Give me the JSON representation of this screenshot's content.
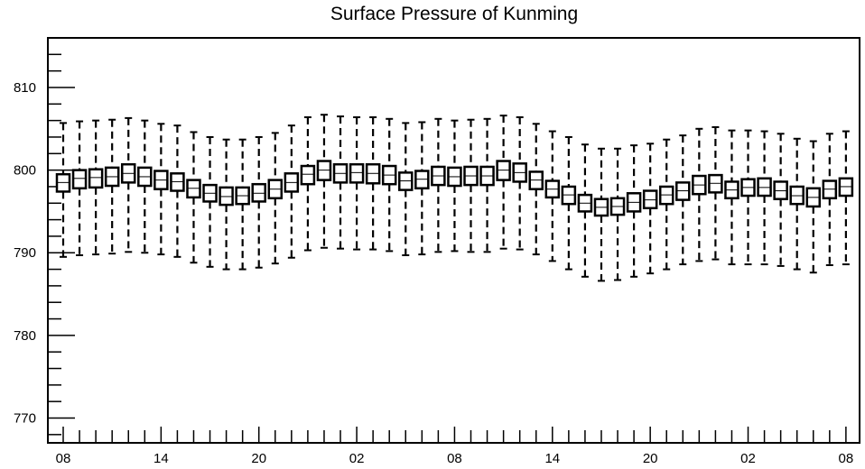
{
  "chart_data": {
    "type": "boxplot",
    "title": "Surface Pressure of Kunming",
    "xlabel": "",
    "ylabel": "",
    "ylim": [
      767,
      816
    ],
    "y_ticks": [
      770,
      780,
      790,
      800,
      810
    ],
    "x_tick_labels": [
      "08",
      "14",
      "20",
      "02",
      "08",
      "14",
      "20",
      "02",
      "08"
    ],
    "grid": false,
    "series": [
      {
        "lower": [
          789.5,
          789.7,
          789.8,
          789.9,
          790.1,
          790.0,
          789.8,
          789.5,
          788.8,
          788.3,
          788.0,
          788.0,
          788.2,
          788.7,
          789.4,
          790.3,
          790.6,
          790.5,
          790.4,
          790.4,
          790.2,
          789.7,
          789.8,
          790.1,
          790.2,
          790.1,
          790.1,
          790.5,
          790.4,
          789.8,
          789.0,
          788.0,
          787.1,
          786.6,
          786.7,
          787.1,
          787.5,
          788.0,
          788.6,
          789.0,
          789.2,
          788.6,
          788.6,
          788.6,
          788.4,
          788.0,
          787.6,
          788.5,
          788.6
        ],
        "q1": [
          797.4,
          797.8,
          797.9,
          798.1,
          798.5,
          798.1,
          797.7,
          797.5,
          796.7,
          796.2,
          795.8,
          795.9,
          796.2,
          796.6,
          797.4,
          798.3,
          798.8,
          798.5,
          798.5,
          798.4,
          798.3,
          797.6,
          797.8,
          798.2,
          798.1,
          798.2,
          798.2,
          798.8,
          798.6,
          797.7,
          796.7,
          795.9,
          795.0,
          794.5,
          794.6,
          795.0,
          795.4,
          795.9,
          796.4,
          797.1,
          797.3,
          796.6,
          796.9,
          796.9,
          796.5,
          795.9,
          795.6,
          796.6,
          796.9
        ],
        "median": [
          798.5,
          799.0,
          799.1,
          799.2,
          799.6,
          799.2,
          798.8,
          798.6,
          797.8,
          797.2,
          796.8,
          796.9,
          797.2,
          797.7,
          798.5,
          799.5,
          800.0,
          799.6,
          799.7,
          799.6,
          799.4,
          798.7,
          798.9,
          799.3,
          799.2,
          799.3,
          799.3,
          800.0,
          799.7,
          798.8,
          797.7,
          797.0,
          796.0,
          795.5,
          795.6,
          796.1,
          796.4,
          797.0,
          797.5,
          798.2,
          798.4,
          797.6,
          797.9,
          797.9,
          797.5,
          796.9,
          796.7,
          797.7,
          798.0
        ],
        "q3": [
          799.5,
          800.0,
          800.1,
          800.3,
          800.7,
          800.3,
          799.9,
          799.6,
          798.8,
          798.2,
          797.9,
          797.9,
          798.3,
          798.8,
          799.6,
          800.5,
          801.1,
          800.7,
          800.7,
          800.7,
          800.5,
          799.7,
          799.9,
          800.4,
          800.3,
          800.4,
          800.4,
          801.1,
          800.8,
          799.8,
          798.7,
          798.0,
          797.0,
          796.5,
          796.6,
          797.2,
          797.5,
          798.0,
          798.5,
          799.3,
          799.4,
          798.6,
          798.9,
          799.0,
          798.6,
          798.0,
          797.8,
          798.7,
          799.0
        ],
        "upper": [
          805.7,
          805.9,
          806.0,
          806.1,
          806.3,
          806.0,
          805.6,
          805.4,
          804.6,
          804.0,
          803.7,
          803.7,
          804.0,
          804.5,
          805.4,
          806.4,
          806.7,
          806.5,
          806.4,
          806.4,
          806.2,
          805.7,
          805.8,
          806.2,
          806.0,
          806.1,
          806.2,
          806.6,
          806.4,
          805.6,
          804.7,
          804.0,
          803.1,
          802.6,
          802.6,
          803.0,
          803.2,
          803.7,
          804.2,
          805.0,
          805.2,
          804.8,
          804.8,
          804.7,
          804.4,
          803.8,
          803.5,
          804.4,
          804.7
        ]
      }
    ]
  }
}
